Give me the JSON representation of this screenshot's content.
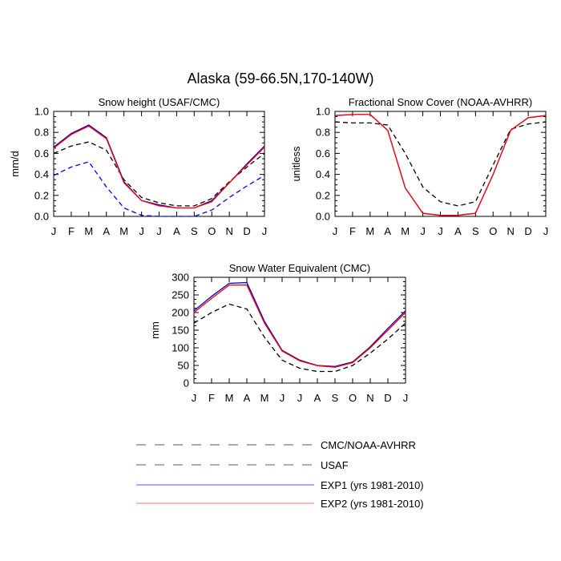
{
  "title": "Alaska (59-66.5N,170-140W)",
  "months": [
    "J",
    "F",
    "M",
    "A",
    "M",
    "J",
    "J",
    "A",
    "S",
    "O",
    "N",
    "D",
    "J"
  ],
  "colors": {
    "ref": "#000000",
    "usaf": "#0000ff",
    "exp1": "#0000cc",
    "exp2": "#ff0000"
  },
  "legend": {
    "items": [
      {
        "key": "ref",
        "label": "CMC/NOAA-AVHRR",
        "dash": "dashed",
        "color": "#555555"
      },
      {
        "key": "usaf",
        "label": "USAF",
        "dash": "dashed",
        "color": "#5555aa"
      },
      {
        "key": "exp1",
        "label": "EXP1 (yrs 1981-2010)",
        "dash": "solid",
        "color": "#5555ff"
      },
      {
        "key": "exp2",
        "label": "EXP2 (yrs 1981-2010)",
        "dash": "solid",
        "color": "#ff7777"
      }
    ]
  },
  "chart_data": [
    {
      "type": "line",
      "title": "Snow height (USAF/CMC)",
      "ylabel": "mm/d",
      "xlabel": "",
      "ylim": [
        0,
        1.0
      ],
      "yticks": [
        0.0,
        0.2,
        0.4,
        0.6,
        0.8,
        1.0
      ],
      "yticklabels": [
        "0.0",
        "0.2",
        "0.4",
        "0.6",
        "0.8",
        "1.0"
      ],
      "categories": [
        "J",
        "F",
        "M",
        "A",
        "M",
        "J",
        "J",
        "A",
        "S",
        "O",
        "N",
        "D",
        "J"
      ],
      "series": [
        {
          "name": "CMC/NOAA-AVHRR",
          "key": "ref",
          "values": [
            0.6,
            0.67,
            0.71,
            0.63,
            0.35,
            0.18,
            0.13,
            0.1,
            0.1,
            0.17,
            0.33,
            0.47,
            0.6
          ]
        },
        {
          "name": "USAF",
          "key": "usaf",
          "values": [
            0.39,
            0.47,
            0.52,
            0.28,
            0.08,
            0.01,
            0.0,
            0.0,
            0.0,
            0.06,
            0.18,
            0.29,
            0.39
          ]
        },
        {
          "name": "EXP1 (yrs 1981-2010)",
          "key": "exp1",
          "values": [
            0.66,
            0.79,
            0.87,
            0.75,
            0.33,
            0.15,
            0.11,
            0.08,
            0.08,
            0.15,
            0.32,
            0.5,
            0.67
          ]
        },
        {
          "name": "EXP2 (yrs 1981-2010)",
          "key": "exp2",
          "values": [
            0.65,
            0.78,
            0.86,
            0.74,
            0.32,
            0.15,
            0.1,
            0.08,
            0.08,
            0.14,
            0.32,
            0.49,
            0.66
          ]
        }
      ]
    },
    {
      "type": "line",
      "title": "Fractional Snow Cover (NOAA-AVHRR)",
      "ylabel": "unitless",
      "xlabel": "",
      "ylim": [
        0,
        1.0
      ],
      "yticks": [
        0.0,
        0.2,
        0.4,
        0.6,
        0.8,
        1.0
      ],
      "yticklabels": [
        "0.0",
        "0.2",
        "0.4",
        "0.6",
        "0.8",
        "1.0"
      ],
      "categories": [
        "J",
        "F",
        "M",
        "A",
        "M",
        "J",
        "J",
        "A",
        "S",
        "O",
        "N",
        "D",
        "J"
      ],
      "series": [
        {
          "name": "CMC/NOAA-AVHRR",
          "key": "ref",
          "values": [
            0.9,
            0.89,
            0.89,
            0.87,
            0.6,
            0.28,
            0.14,
            0.1,
            0.14,
            0.49,
            0.83,
            0.88,
            0.9
          ]
        },
        {
          "name": "EXP1 (yrs 1981-2010)",
          "key": "exp1",
          "values": [
            0.96,
            0.97,
            0.97,
            0.82,
            0.27,
            0.03,
            0.01,
            0.01,
            0.03,
            0.4,
            0.82,
            0.94,
            0.96
          ]
        },
        {
          "name": "EXP2 (yrs 1981-2010)",
          "key": "exp2",
          "values": [
            0.96,
            0.97,
            0.97,
            0.82,
            0.27,
            0.03,
            0.01,
            0.01,
            0.03,
            0.4,
            0.82,
            0.94,
            0.96
          ]
        }
      ]
    },
    {
      "type": "line",
      "title": "Snow Water Equivalent (CMC)",
      "ylabel": "mm",
      "xlabel": "",
      "ylim": [
        0,
        300
      ],
      "yticks": [
        0,
        50,
        100,
        150,
        200,
        250,
        300
      ],
      "yticklabels": [
        "0",
        "50",
        "100",
        "150",
        "200",
        "250",
        "300"
      ],
      "categories": [
        "J",
        "F",
        "M",
        "A",
        "M",
        "J",
        "J",
        "A",
        "S",
        "O",
        "N",
        "D",
        "J"
      ],
      "series": [
        {
          "name": "CMC/NOAA-AVHRR",
          "key": "ref",
          "values": [
            170,
            200,
            224,
            210,
            130,
            65,
            42,
            33,
            33,
            50,
            85,
            125,
            170
          ]
        },
        {
          "name": "EXP1 (yrs 1981-2010)",
          "key": "exp1",
          "values": [
            205,
            246,
            283,
            285,
            175,
            93,
            65,
            50,
            47,
            60,
            103,
            155,
            205
          ]
        },
        {
          "name": "EXP2 (yrs 1981-2010)",
          "key": "exp2",
          "values": [
            200,
            240,
            278,
            278,
            170,
            91,
            63,
            49,
            45,
            58,
            100,
            150,
            200
          ]
        }
      ]
    }
  ]
}
